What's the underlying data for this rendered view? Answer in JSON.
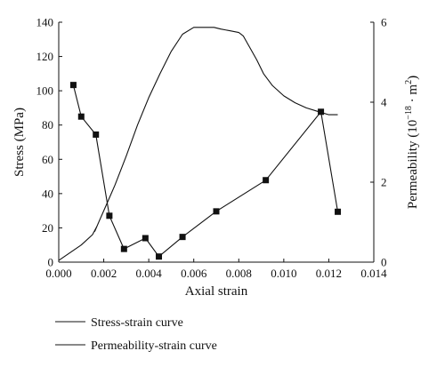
{
  "chart_data": {
    "type": "line",
    "xlabel": "Axial strain",
    "ylabel_left": "Stress (MPa)",
    "ylabel_right_prefix": "Permeability (10",
    "ylabel_right_exp": "−18",
    "ylabel_right_suffix": " · m",
    "ylabel_right_unit_exp": "2",
    "ylabel_right_close": ")",
    "xlim": [
      0,
      0.014
    ],
    "ylim_left": [
      0,
      140
    ],
    "ylim_right": [
      0,
      6
    ],
    "x_ticks": [
      0,
      0.002,
      0.004,
      0.006,
      0.008,
      0.01,
      0.012,
      0.014
    ],
    "x_tick_labels": [
      "0.000",
      "0.002",
      "0.004",
      "0.006",
      "0.008",
      "0.010",
      "0.012",
      "0.014"
    ],
    "y_left_ticks": [
      0,
      20,
      40,
      60,
      80,
      100,
      120,
      140
    ],
    "y_left_tick_labels": [
      "0",
      "20",
      "40",
      "60",
      "80",
      "100",
      "120",
      "140"
    ],
    "y_right_ticks": [
      0,
      2,
      4,
      6
    ],
    "y_right_tick_labels": [
      "0",
      "2",
      "4",
      "6"
    ],
    "legend_position": "bottom",
    "series": [
      {
        "name": "Stress-strain curve",
        "axis": "left",
        "marker": "none",
        "color": "#111111",
        "x": [
          0.0,
          0.001,
          0.0015,
          0.0017,
          0.0016,
          0.0018,
          0.002,
          0.0025,
          0.003,
          0.0035,
          0.004,
          0.0045,
          0.005,
          0.0055,
          0.006,
          0.0065,
          0.0069,
          0.0072,
          0.0076,
          0.008,
          0.0082,
          0.0085,
          0.0088,
          0.0091,
          0.0095,
          0.01,
          0.0105,
          0.011,
          0.0115,
          0.012,
          0.0124
        ],
        "y": [
          1,
          10,
          16,
          21,
          18,
          24,
          30,
          45,
          62,
          80,
          96,
          110,
          123,
          133,
          137,
          137,
          137,
          136,
          135,
          134,
          132,
          125,
          118,
          110,
          103,
          97,
          93,
          90,
          88,
          86,
          86
        ]
      },
      {
        "name": "Permeability-strain curve",
        "axis": "right",
        "marker": "square",
        "color": "#111111",
        "x": [
          0.00065,
          0.001,
          0.00165,
          0.00225,
          0.0029,
          0.00385,
          0.00445,
          0.0055,
          0.007,
          0.0092,
          0.01165,
          0.0124
        ],
        "y": [
          4.43,
          3.64,
          3.19,
          1.16,
          0.33,
          0.6,
          0.14,
          0.63,
          1.27,
          2.05,
          3.76,
          1.26
        ]
      }
    ]
  }
}
